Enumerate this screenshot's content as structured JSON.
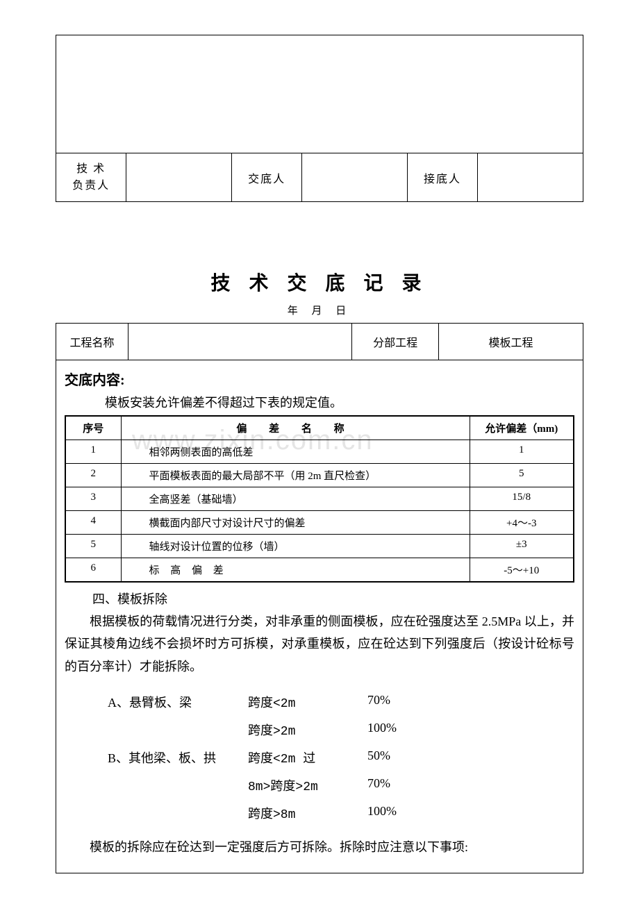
{
  "watermark": "www.zixin.com.cn",
  "signature": {
    "tech_leader_label": "技 术\n负责人",
    "disclose_label": "交底人",
    "receive_label": "接底人"
  },
  "title": "技 术 交 底 记 录",
  "date_line": "年  月  日",
  "header": {
    "project_label": "工程名称",
    "project_value": "",
    "subpart_label": "分部工程",
    "subpart_value": "模板工程"
  },
  "content": {
    "heading": "交底内容:",
    "intro": "模板安装允许偏差不得超过下表的规定值。",
    "spec_header": {
      "seq": "序号",
      "name": "偏 差 名 称",
      "dev": "允许偏差（mm)"
    },
    "spec_rows": [
      {
        "seq": "1",
        "name": "相邻两侧表面的高低差",
        "dev": "1"
      },
      {
        "seq": "2",
        "name": "平面模板表面的最大局部不平（用 2m 直尺检查）",
        "dev": "5"
      },
      {
        "seq": "3",
        "name": "全高竖差（基础墙）",
        "dev": "15/8"
      },
      {
        "seq": "4",
        "name": "横截面内部尺寸对设计尺寸的偏差",
        "dev": "+4～-3"
      },
      {
        "seq": "5",
        "name": "轴线对设计位置的位移（墙）",
        "dev": "±3"
      },
      {
        "seq": "6",
        "name": "标 高 偏 差",
        "dev": "-5～+10"
      }
    ],
    "section4_heading": "四、模板拆除",
    "para1": "根据模板的荷载情况进行分类，对非承重的侧面模板，应在砼强度达至 2.5MPa 以上，并保证其棱角边线不会损坏时方可拆模，对承重模板，应在砼达到下列强度后（按设计砼标号的百分率计）才能拆除。",
    "span_rows": [
      {
        "cat": "A、悬臂板、梁",
        "range": "跨度<2m",
        "pct": "70%"
      },
      {
        "cat": "",
        "range": "跨度>2m",
        "pct": "100%"
      },
      {
        "cat": "B、其他梁、板、拱",
        "range": "跨度<2m 过",
        "pct": "50%"
      },
      {
        "cat": "",
        "range": "8m>跨度>2m",
        "pct": "70%"
      },
      {
        "cat": "",
        "range": "跨度>8m",
        "pct": "100%"
      }
    ],
    "final_note": "模板的拆除应在砼达到一定强度后方可拆除。拆除时应注意以下事项:"
  },
  "colors": {
    "text": "#000000",
    "background": "#ffffff",
    "border": "#000000",
    "watermark": "#e5e5e5"
  }
}
